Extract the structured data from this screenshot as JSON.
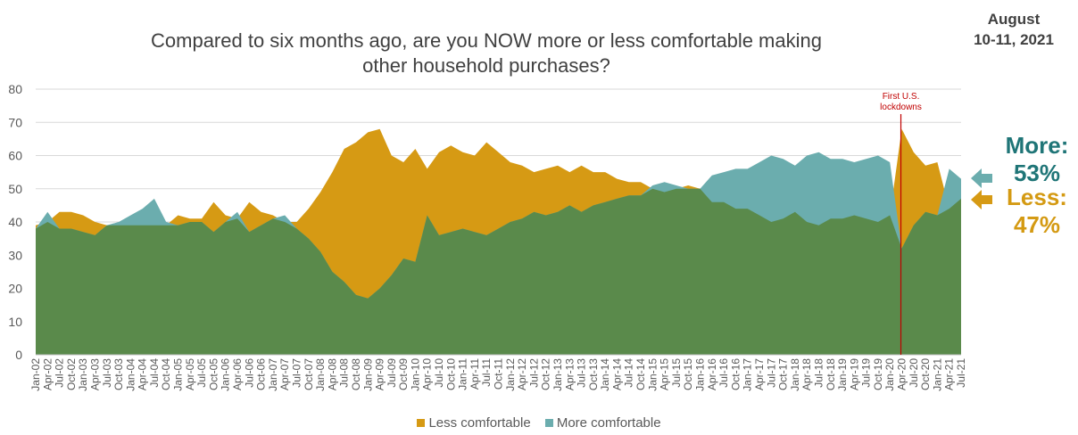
{
  "header": {
    "title_line1": "Compared to six months ago, are you NOW more or less comfortable making",
    "title_line2": "other household purchases?",
    "date_line1": "August",
    "date_line2": "10-11, 2021"
  },
  "callouts": {
    "more_label": "More:",
    "more_value": "53%",
    "less_label": "Less:",
    "less_value": "47%"
  },
  "colors": {
    "less": "#d69a14",
    "more": "#6badae",
    "floor": "#5a8a4b",
    "annotation": "#c00000",
    "more_text": "#1f7577",
    "less_text": "#d49a13"
  },
  "chart_data": {
    "type": "area",
    "title": "Compared to six months ago, are you NOW more or less comfortable making other household purchases?",
    "ylim": [
      0,
      80
    ],
    "yticks": [
      0,
      10,
      20,
      30,
      40,
      50,
      60,
      70,
      80
    ],
    "grid": true,
    "legend_position": "bottom",
    "x_tick_labels": [
      "Jan-02",
      "Apr-02",
      "Jul-02",
      "Oct-02",
      "Jan-03",
      "Apr-03",
      "Jul-03",
      "Oct-03",
      "Jan-04",
      "Apr-04",
      "Jul-04",
      "Oct-04",
      "Jan-05",
      "Apr-05",
      "Jul-05",
      "Oct-05",
      "Jan-06",
      "Apr-06",
      "Jul-06",
      "Oct-06",
      "Jan-07",
      "Apr-07",
      "Jul-07",
      "Oct-07",
      "Jan-08",
      "Apr-08",
      "Jul-08",
      "Oct-08",
      "Jan-09",
      "Apr-09",
      "Jul-09",
      "Oct-09",
      "Jan-10",
      "Apr-10",
      "Jul-10",
      "Oct-10",
      "Jan-11",
      "Apr-11",
      "Jul-11",
      "Oct-11",
      "Jan-12",
      "Apr-12",
      "Jul-12",
      "Oct-12",
      "Jan-13",
      "Apr-13",
      "Jul-13",
      "Oct-13",
      "Jan-14",
      "Apr-14",
      "Jul-14",
      "Oct-14",
      "Jan-15",
      "Apr-15",
      "Jul-15",
      "Oct-15",
      "Jan-16",
      "Apr-16",
      "Jul-16",
      "Oct-16",
      "Jan-17",
      "Apr-17",
      "Jul-17",
      "Oct-17",
      "Jan-18",
      "Apr-18",
      "Jul-18",
      "Oct-18",
      "Jan-19",
      "Apr-19",
      "Jul-19",
      "Oct-19",
      "Jan-20",
      "Apr-20",
      "Jul-20",
      "Oct-20",
      "Jan-21",
      "Apr-21",
      "Jul-21"
    ],
    "series": [
      {
        "name": "Less comfortable",
        "points": [
          [
            "Jan-02",
            39
          ],
          [
            "Apr-02",
            40
          ],
          [
            "Jul-02",
            43
          ],
          [
            "Oct-02",
            43
          ],
          [
            "Jan-03",
            42
          ],
          [
            "Apr-03",
            40
          ],
          [
            "Jul-03",
            39
          ],
          [
            "Oct-03",
            39
          ],
          [
            "Jan-04",
            39
          ],
          [
            "Apr-04",
            39
          ],
          [
            "Jul-04",
            39
          ],
          [
            "Oct-04",
            39
          ],
          [
            "Jan-05",
            42
          ],
          [
            "Apr-05",
            41
          ],
          [
            "Jul-05",
            41
          ],
          [
            "Oct-05",
            46
          ],
          [
            "Jan-06",
            42
          ],
          [
            "Apr-06",
            41
          ],
          [
            "Jul-06",
            46
          ],
          [
            "Oct-06",
            43
          ],
          [
            "Jan-07",
            42
          ],
          [
            "Apr-07",
            40
          ],
          [
            "Jul-07",
            40
          ],
          [
            "Oct-07",
            44
          ],
          [
            "Jan-08",
            49
          ],
          [
            "Apr-08",
            55
          ],
          [
            "Jul-08",
            62
          ],
          [
            "Oct-08",
            64
          ],
          [
            "Jan-09",
            67
          ],
          [
            "Apr-09",
            68
          ],
          [
            "Jul-09",
            60
          ],
          [
            "Oct-09",
            58
          ],
          [
            "Jan-10",
            62
          ],
          [
            "Apr-10",
            56
          ],
          [
            "Jul-10",
            61
          ],
          [
            "Oct-10",
            63
          ],
          [
            "Jan-11",
            61
          ],
          [
            "Apr-11",
            60
          ],
          [
            "Jul-11",
            64
          ],
          [
            "Oct-11",
            61
          ],
          [
            "Jan-12",
            58
          ],
          [
            "Apr-12",
            57
          ],
          [
            "Jul-12",
            55
          ],
          [
            "Oct-12",
            56
          ],
          [
            "Jan-13",
            57
          ],
          [
            "Apr-13",
            55
          ],
          [
            "Jul-13",
            57
          ],
          [
            "Oct-13",
            55
          ],
          [
            "Jan-14",
            55
          ],
          [
            "Apr-14",
            53
          ],
          [
            "Jul-14",
            52
          ],
          [
            "Oct-14",
            52
          ],
          [
            "Jan-15",
            50
          ],
          [
            "Apr-15",
            49
          ],
          [
            "Jul-15",
            50
          ],
          [
            "Oct-15",
            51
          ],
          [
            "Jan-16",
            50
          ],
          [
            "Apr-16",
            46
          ],
          [
            "Jul-16",
            46
          ],
          [
            "Oct-16",
            44
          ],
          [
            "Jan-17",
            44
          ],
          [
            "Apr-17",
            42
          ],
          [
            "Jul-17",
            40
          ],
          [
            "Oct-17",
            41
          ],
          [
            "Jan-18",
            43
          ],
          [
            "Apr-18",
            40
          ],
          [
            "Jul-18",
            39
          ],
          [
            "Oct-18",
            41
          ],
          [
            "Jan-19",
            41
          ],
          [
            "Apr-19",
            42
          ],
          [
            "Jul-19",
            41
          ],
          [
            "Oct-19",
            40
          ],
          [
            "Jan-20",
            42
          ],
          [
            "Apr-20",
            68
          ],
          [
            "Jul-20",
            61
          ],
          [
            "Oct-20",
            57
          ],
          [
            "Jan-21",
            58
          ],
          [
            "Apr-21",
            44
          ],
          [
            "Jul-21",
            47
          ]
        ]
      },
      {
        "name": "More comfortable",
        "points": [
          [
            "Jan-02",
            38
          ],
          [
            "Apr-02",
            43
          ],
          [
            "Jul-02",
            38
          ],
          [
            "Oct-02",
            38
          ],
          [
            "Jan-03",
            37
          ],
          [
            "Apr-03",
            36
          ],
          [
            "Jul-03",
            39
          ],
          [
            "Oct-03",
            40
          ],
          [
            "Jan-04",
            42
          ],
          [
            "Apr-04",
            44
          ],
          [
            "Jul-04",
            47
          ],
          [
            "Oct-04",
            40
          ],
          [
            "Jan-05",
            39
          ],
          [
            "Apr-05",
            40
          ],
          [
            "Jul-05",
            40
          ],
          [
            "Oct-05",
            37
          ],
          [
            "Jan-06",
            40
          ],
          [
            "Apr-06",
            43
          ],
          [
            "Jul-06",
            37
          ],
          [
            "Oct-06",
            39
          ],
          [
            "Jan-07",
            41
          ],
          [
            "Apr-07",
            42
          ],
          [
            "Jul-07",
            38
          ],
          [
            "Oct-07",
            35
          ],
          [
            "Jan-08",
            31
          ],
          [
            "Apr-08",
            25
          ],
          [
            "Jul-08",
            22
          ],
          [
            "Oct-08",
            18
          ],
          [
            "Jan-09",
            17
          ],
          [
            "Apr-09",
            20
          ],
          [
            "Jul-09",
            24
          ],
          [
            "Oct-09",
            29
          ],
          [
            "Jan-10",
            28
          ],
          [
            "Apr-10",
            42
          ],
          [
            "Jul-10",
            36
          ],
          [
            "Oct-10",
            37
          ],
          [
            "Jan-11",
            38
          ],
          [
            "Apr-11",
            37
          ],
          [
            "Jul-11",
            36
          ],
          [
            "Oct-11",
            38
          ],
          [
            "Jan-12",
            40
          ],
          [
            "Apr-12",
            41
          ],
          [
            "Jul-12",
            43
          ],
          [
            "Oct-12",
            42
          ],
          [
            "Jan-13",
            43
          ],
          [
            "Apr-13",
            45
          ],
          [
            "Jul-13",
            43
          ],
          [
            "Oct-13",
            45
          ],
          [
            "Jan-14",
            46
          ],
          [
            "Apr-14",
            47
          ],
          [
            "Jul-14",
            48
          ],
          [
            "Oct-14",
            48
          ],
          [
            "Jan-15",
            51
          ],
          [
            "Apr-15",
            52
          ],
          [
            "Jul-15",
            51
          ],
          [
            "Oct-15",
            50
          ],
          [
            "Jan-16",
            50
          ],
          [
            "Apr-16",
            54
          ],
          [
            "Jul-16",
            55
          ],
          [
            "Oct-16",
            56
          ],
          [
            "Jan-17",
            56
          ],
          [
            "Apr-17",
            58
          ],
          [
            "Jul-17",
            60
          ],
          [
            "Oct-17",
            59
          ],
          [
            "Jan-18",
            57
          ],
          [
            "Apr-18",
            60
          ],
          [
            "Jul-18",
            61
          ],
          [
            "Oct-18",
            59
          ],
          [
            "Jan-19",
            59
          ],
          [
            "Apr-19",
            58
          ],
          [
            "Jul-19",
            59
          ],
          [
            "Oct-19",
            60
          ],
          [
            "Jan-20",
            58
          ],
          [
            "Apr-20",
            32
          ],
          [
            "Jul-20",
            39
          ],
          [
            "Oct-20",
            43
          ],
          [
            "Jan-21",
            42
          ],
          [
            "Apr-21",
            56
          ],
          [
            "Jul-21",
            53
          ]
        ]
      }
    ],
    "annotation": {
      "at": "Apr-20",
      "text_line1": "First U.S.",
      "text_line2": "lockdowns"
    }
  },
  "legend": {
    "less_label": "Less comfortable",
    "more_label": "More comfortable"
  }
}
